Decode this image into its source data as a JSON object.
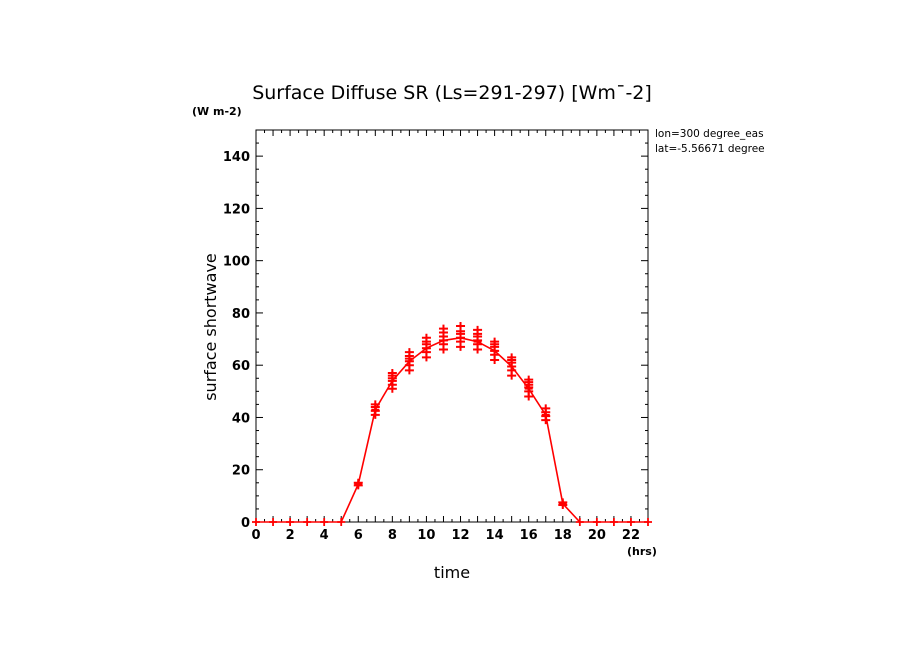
{
  "chart_data": {
    "type": "line",
    "title": "Surface Diffuse SR (Ls=291-297) [Wm¯-2]",
    "y_unit_label": "(W m-2)",
    "x_unit_label": "(hrs)",
    "xlabel": "time",
    "ylabel": "surface shortwave",
    "annotations": [
      "lon=300 degree_eas",
      "lat=-5.56671 degree"
    ],
    "xlim": [
      0,
      23
    ],
    "ylim": [
      0,
      150
    ],
    "x_ticks": [
      0,
      2,
      4,
      6,
      8,
      10,
      12,
      14,
      16,
      18,
      20,
      22
    ],
    "y_ticks": [
      0,
      20,
      40,
      60,
      80,
      100,
      120,
      140
    ],
    "color": "#ff0000",
    "grid": false,
    "series": [
      {
        "x": [
          0,
          1,
          2,
          3,
          4,
          5,
          6,
          7,
          8,
          9,
          10,
          11,
          12,
          13,
          14,
          15,
          16,
          17,
          18,
          19,
          20,
          21,
          22,
          23
        ],
        "values": [
          0,
          0,
          0,
          0,
          0,
          0,
          14.5,
          43,
          54,
          61.5,
          66.5,
          69.5,
          70.5,
          69,
          65.5,
          59.5,
          51,
          41,
          7,
          0,
          0,
          0,
          0,
          0
        ]
      }
    ],
    "scatter": {
      "x": [
        6,
        6,
        7,
        7,
        7,
        7,
        8,
        8,
        8,
        8,
        8,
        8,
        9,
        9,
        9,
        9,
        9,
        9,
        10,
        10,
        10,
        10,
        10,
        10,
        11,
        11,
        11,
        11,
        11,
        11,
        12,
        12,
        12,
        12,
        12,
        12,
        13,
        13,
        13,
        13,
        13,
        13,
        14,
        14,
        14,
        14,
        14,
        14,
        15,
        15,
        15,
        15,
        15,
        15,
        16,
        16,
        16,
        16,
        16,
        16,
        17,
        17,
        17,
        17,
        18,
        18
      ],
      "y": [
        14,
        15,
        41,
        42.5,
        44,
        45,
        51,
        52.5,
        54,
        55,
        56,
        57,
        58,
        60,
        61.5,
        62.5,
        63.5,
        65,
        63,
        65,
        66.5,
        68,
        69,
        70.5,
        66,
        68,
        69.5,
        71,
        72.5,
        74,
        67,
        69,
        70.5,
        72,
        73,
        75,
        66,
        68,
        69.5,
        71,
        72,
        73.5,
        62,
        64,
        65.5,
        67,
        68,
        69,
        56,
        58,
        59.5,
        61,
        62,
        63,
        48,
        50,
        51.5,
        52.5,
        53.5,
        54.5,
        39,
        40.5,
        42,
        43.5,
        6.5,
        7.5
      ]
    }
  }
}
